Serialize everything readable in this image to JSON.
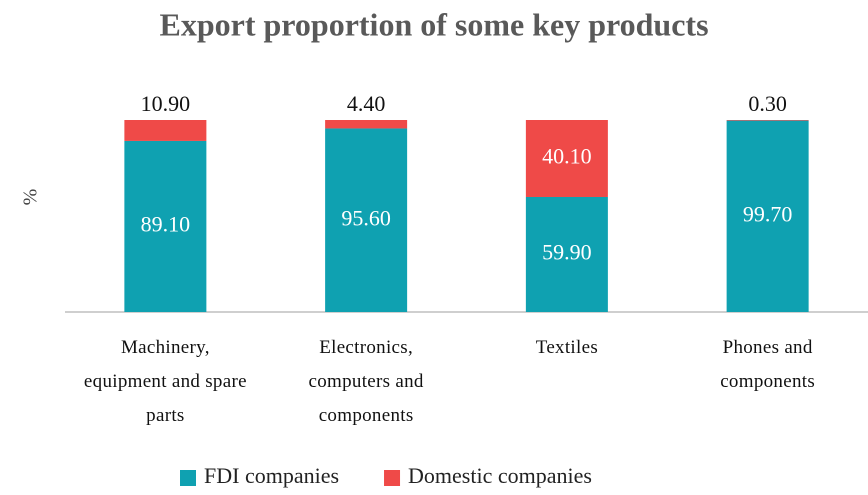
{
  "chart_data": {
    "type": "stacked_bar",
    "title": "Export proportion of some key products",
    "y_label": "%",
    "categories": [
      "Machinery, equipment and spare parts",
      "Electronics, computers and components",
      "Textiles",
      "Phones and components"
    ],
    "series": [
      {
        "name": "FDI companies",
        "color": "#0fa1b1",
        "values": [
          89.1,
          95.6,
          59.9,
          99.7
        ],
        "value_labels": [
          "89.10",
          "95.60",
          "59.90",
          "99.70"
        ]
      },
      {
        "name": "Domestic companies",
        "color": "#ef4a48",
        "values": [
          10.9,
          4.4,
          40.1,
          0.3
        ],
        "value_labels": [
          "10.90",
          "4.40",
          "40.10",
          "0.30"
        ]
      }
    ],
    "ylim": [
      0,
      100
    ],
    "legend": "bottom"
  }
}
